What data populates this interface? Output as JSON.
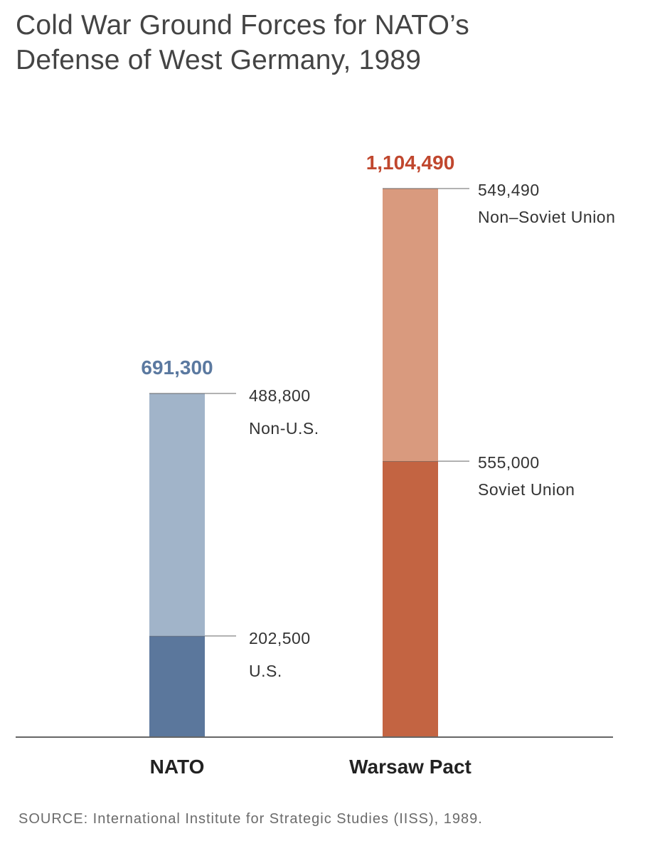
{
  "chart_data": {
    "type": "bar",
    "stacked": true,
    "title_lines": [
      "Cold War Ground Forces for NATO’s",
      "Defense of West Germany, 1989"
    ],
    "categories": [
      "NATO",
      "Warsaw Pact"
    ],
    "totals": [
      691300,
      1104490
    ],
    "total_labels": [
      "691,300",
      "1,104,490"
    ],
    "total_colors": [
      "#5b79a0",
      "#c0472e"
    ],
    "stacks": [
      {
        "category": "NATO",
        "segments": [
          {
            "name": "U.S.",
            "value": 202500,
            "value_label": "202,500",
            "color": "#5b779c"
          },
          {
            "name": "Non-U.S.",
            "value": 488800,
            "value_label": "488,800",
            "color": "#a1b4c9"
          }
        ]
      },
      {
        "category": "Warsaw Pact",
        "segments": [
          {
            "name": "Soviet Union",
            "value": 555000,
            "value_label": "555,000",
            "color": "#c36442"
          },
          {
            "name": "Non–Soviet Union",
            "value": 549490,
            "value_label": "549,490",
            "color": "#d99a7e"
          }
        ]
      }
    ],
    "ylim": [
      0,
      1104490
    ],
    "grid": false,
    "legend": "none",
    "xlabel": "",
    "ylabel": ""
  },
  "source": "SOURCE: International Institute for Strategic Studies (IISS), 1989."
}
